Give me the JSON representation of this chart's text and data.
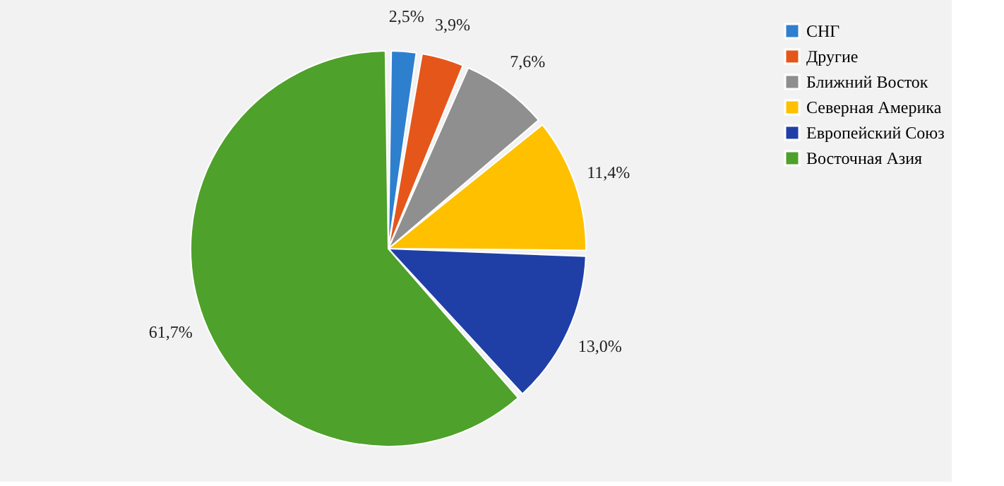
{
  "chart_data": {
    "type": "pie",
    "categories": [
      "СНГ",
      "Другие",
      "Ближний Восток",
      "Северная Америка",
      "Европейский Союз",
      "Восточная Азия"
    ],
    "values": [
      2.5,
      3.9,
      7.6,
      11.4,
      13.0,
      61.7
    ],
    "colors": [
      "#2f7fcf",
      "#e5561a",
      "#8f8f8f",
      "#ffc000",
      "#1f3fa6",
      "#4ea12a"
    ],
    "value_labels": [
      "2,5%",
      "3,9%",
      "7,6%",
      "11,4%",
      "13,0%",
      "61,7%"
    ],
    "legend": "right"
  }
}
